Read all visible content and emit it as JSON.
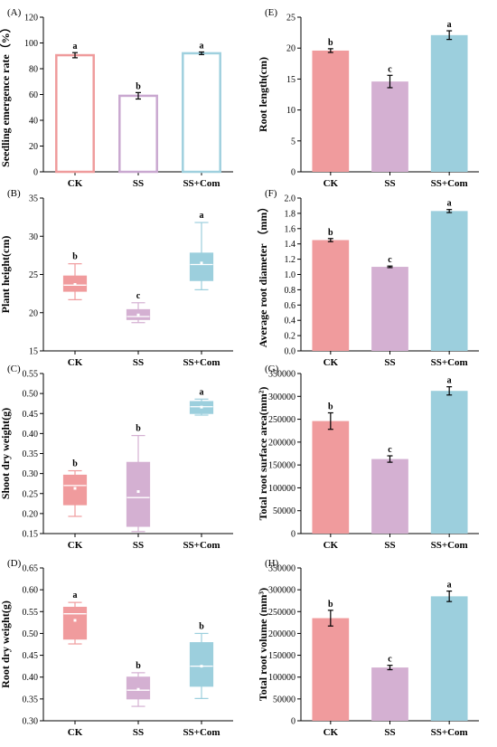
{
  "figure_title": "",
  "chart_data": [
    {
      "id": "A",
      "panel_label": "(A)",
      "type": "bar",
      "style": "hollow",
      "ylabel": "Seedling emergence rate（%）",
      "categories": [
        "CK",
        "SS",
        "SS+Com"
      ],
      "values": [
        90.5,
        59.0,
        92.0
      ],
      "errors": [
        2.0,
        2.5,
        1.0
      ],
      "letters": [
        "a",
        "b",
        "a"
      ],
      "ylim": [
        0,
        120
      ],
      "yticks": [
        0,
        20,
        40,
        60,
        80,
        100,
        120
      ],
      "ytick_labels": [
        "0",
        "20",
        "40",
        "60",
        "80",
        "100",
        "120"
      ],
      "colors": [
        "#ef9b9c",
        "#c9a8d0",
        "#9fd0de"
      ]
    },
    {
      "id": "E",
      "panel_label": "(E)",
      "type": "bar",
      "style": "filled",
      "ylabel": "Root length(cm)",
      "categories": [
        "CK",
        "SS",
        "SS+Com"
      ],
      "values": [
        19.6,
        14.6,
        22.1
      ],
      "errors": [
        0.3,
        1.0,
        0.7
      ],
      "letters": [
        "b",
        "c",
        "a"
      ],
      "ylim": [
        0,
        25
      ],
      "yticks": [
        0,
        5,
        10,
        15,
        20,
        25
      ],
      "ytick_labels": [
        "0",
        "5",
        "10",
        "15",
        "20",
        "25"
      ],
      "colors": [
        "#f09b9d",
        "#d4b0d2",
        "#9ccfdd"
      ]
    },
    {
      "id": "B",
      "panel_label": "(B)",
      "type": "box",
      "ylabel": "Plant height(cm)",
      "categories": [
        "CK",
        "SS",
        "SS+Com"
      ],
      "boxes": [
        {
          "min": 21.7,
          "q1": 22.8,
          "median": 23.6,
          "q3": 24.8,
          "max": 26.4,
          "mean": 23.7
        },
        {
          "min": 18.7,
          "q1": 19.1,
          "median": 19.5,
          "q3": 20.4,
          "max": 21.3,
          "mean": 19.7
        },
        {
          "min": 23.0,
          "q1": 24.2,
          "median": 26.3,
          "q3": 27.8,
          "max": 31.8,
          "mean": 26.5
        }
      ],
      "letters": [
        "b",
        "c",
        "a"
      ],
      "ylim": [
        15,
        35
      ],
      "yticks": [
        15,
        20,
        25,
        30,
        35
      ],
      "ytick_labels": [
        "15",
        "20",
        "25",
        "30",
        "35"
      ],
      "colors": [
        "#f09b9d",
        "#d4b0d2",
        "#9ccfdd"
      ]
    },
    {
      "id": "F",
      "panel_label": "(F)",
      "type": "bar",
      "style": "filled",
      "ylabel": "Average root diameter （mm）",
      "categories": [
        "CK",
        "SS",
        "SS+Com"
      ],
      "values": [
        1.45,
        1.1,
        1.83
      ],
      "errors": [
        0.02,
        0.01,
        0.02
      ],
      "letters": [
        "b",
        "c",
        "a"
      ],
      "ylim": [
        0,
        2.0
      ],
      "yticks": [
        0,
        0.2,
        0.4,
        0.6,
        0.8,
        1.0,
        1.2,
        1.4,
        1.6,
        1.8,
        2.0
      ],
      "ytick_labels": [
        "0.0",
        "0.2",
        "0.4",
        "0.6",
        "0.8",
        "1.0",
        "1.2",
        "1.4",
        "1.6",
        "1.8",
        "2.0"
      ],
      "colors": [
        "#f09b9d",
        "#d4b0d2",
        "#9ccfdd"
      ]
    },
    {
      "id": "C",
      "panel_label": "(C)",
      "type": "box",
      "ylabel": "Shoot dry weight(g)",
      "categories": [
        "CK",
        "SS",
        "SS+Com"
      ],
      "boxes": [
        {
          "min": 0.193,
          "q1": 0.222,
          "median": 0.27,
          "q3": 0.296,
          "max": 0.307,
          "mean": 0.263
        },
        {
          "min": 0.155,
          "q1": 0.168,
          "median": 0.24,
          "q3": 0.328,
          "max": 0.395,
          "mean": 0.255
        },
        {
          "min": 0.446,
          "q1": 0.45,
          "median": 0.467,
          "q3": 0.48,
          "max": 0.486,
          "mean": 0.466
        }
      ],
      "letters": [
        "b",
        "b",
        "a"
      ],
      "ylim": [
        0.15,
        0.55
      ],
      "yticks": [
        0.15,
        0.2,
        0.25,
        0.3,
        0.35,
        0.4,
        0.45,
        0.5,
        0.55
      ],
      "ytick_labels": [
        "0.15",
        "0.20",
        "0.25",
        "0.30",
        "0.35",
        "0.40",
        "0.45",
        "0.50",
        "0.55"
      ],
      "colors": [
        "#f09b9d",
        "#d4b0d2",
        "#9ccfdd"
      ]
    },
    {
      "id": "G",
      "panel_label": "(G)",
      "type": "bar",
      "style": "filled",
      "ylabel": "Total root surface area(mm²)",
      "categories": [
        "CK",
        "SS",
        "SS+Com"
      ],
      "values": [
        246000,
        163000,
        312000
      ],
      "errors": [
        18000,
        7000,
        9000
      ],
      "letters": [
        "b",
        "c",
        "a"
      ],
      "ylim": [
        0,
        350000
      ],
      "yticks": [
        0,
        50000,
        100000,
        150000,
        200000,
        250000,
        300000,
        350000
      ],
      "ytick_labels": [
        "0",
        "50000",
        "100000",
        "150000",
        "200000",
        "250000",
        "300000",
        "350000"
      ],
      "colors": [
        "#f09b9d",
        "#d4b0d2",
        "#9ccfdd"
      ]
    },
    {
      "id": "D",
      "panel_label": "(D)",
      "type": "box",
      "ylabel": "Root dry weight(g)",
      "categories": [
        "CK",
        "SS",
        "SS+Com"
      ],
      "boxes": [
        {
          "min": 0.476,
          "q1": 0.487,
          "median": 0.545,
          "q3": 0.56,
          "max": 0.571,
          "mean": 0.53
        },
        {
          "min": 0.333,
          "q1": 0.35,
          "median": 0.37,
          "q3": 0.4,
          "max": 0.41,
          "mean": 0.372
        },
        {
          "min": 0.351,
          "q1": 0.379,
          "median": 0.425,
          "q3": 0.479,
          "max": 0.5,
          "mean": 0.425
        }
      ],
      "letters": [
        "a",
        "b",
        "b"
      ],
      "ylim": [
        0.3,
        0.65
      ],
      "yticks": [
        0.3,
        0.35,
        0.4,
        0.45,
        0.5,
        0.55,
        0.6,
        0.65
      ],
      "ytick_labels": [
        "0.30",
        "0.35",
        "0.40",
        "0.45",
        "0.50",
        "0.55",
        "0.60",
        "0.65"
      ],
      "colors": [
        "#f09b9d",
        "#d4b0d2",
        "#9ccfdd"
      ]
    },
    {
      "id": "H",
      "panel_label": "(H)",
      "type": "bar",
      "style": "filled",
      "ylabel": "Total root volume (mm³)",
      "categories": [
        "CK",
        "SS",
        "SS+Com"
      ],
      "values": [
        235000,
        122000,
        285000
      ],
      "errors": [
        18000,
        5000,
        12000
      ],
      "letters": [
        "b",
        "c",
        "a"
      ],
      "ylim": [
        0,
        350000
      ],
      "yticks": [
        0,
        50000,
        100000,
        150000,
        200000,
        250000,
        300000,
        350000
      ],
      "ytick_labels": [
        "0",
        "50000",
        "100000",
        "150000",
        "200000",
        "250000",
        "300000",
        "350000"
      ],
      "colors": [
        "#f09b9d",
        "#d4b0d2",
        "#9ccfdd"
      ]
    }
  ]
}
